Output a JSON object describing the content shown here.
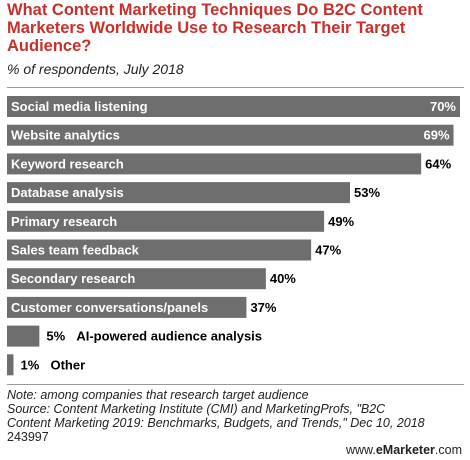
{
  "chart_data": {
    "type": "bar",
    "orientation": "horizontal",
    "title": "What Content Marketing Techniques Do B2C Content Marketers Worldwide Use to Research Their Target Audience?",
    "subtitle": "% of respondents, July 2018",
    "categories": [
      "Social media listening",
      "Website analytics",
      "Keyword research",
      "Database analysis",
      "Primary research",
      "Sales team feedback",
      "Secondary research",
      "Customer conversations/panels",
      "AI-powered audience analysis",
      "Other"
    ],
    "values": [
      70,
      69,
      64,
      53,
      49,
      47,
      40,
      37,
      5,
      1
    ],
    "labels": [
      "70%",
      "69%",
      "64%",
      "53%",
      "49%",
      "47%",
      "40%",
      "37%",
      "5%",
      "1%"
    ],
    "xlim": [
      0,
      70
    ],
    "grid": false,
    "colors": {
      "bar": "#6e6e6e",
      "title": "#c8302c"
    }
  },
  "footer": {
    "note": "Note: among companies that research target audience",
    "source_line1": "Source: Content Marketing Institute (CMI) and MarketingProfs, \"B2C",
    "source_line2": "Content Marketing 2019: Benchmarks, Budgets, and Trends,\" Dec 10, 2018",
    "chart_id": "243997"
  },
  "brand": {
    "prefix": "www.",
    "name": "eMarketer",
    "suffix": ".com"
  }
}
